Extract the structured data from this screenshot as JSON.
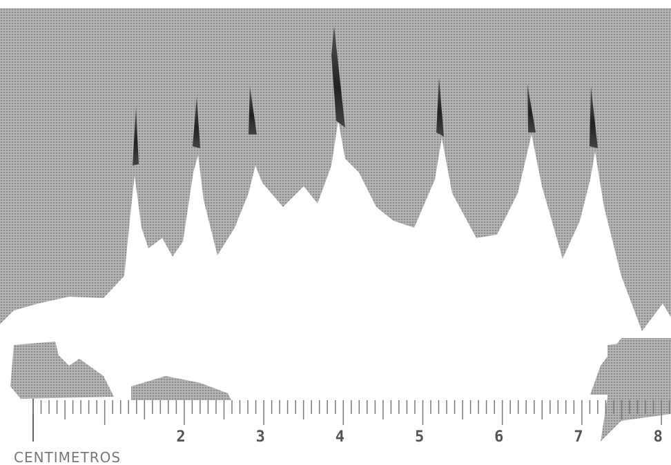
{
  "ruler": {
    "numbers": [
      "2",
      "3",
      "4",
      "5",
      "6",
      "7",
      "8"
    ],
    "unit_label": "CENTIMETROS"
  }
}
